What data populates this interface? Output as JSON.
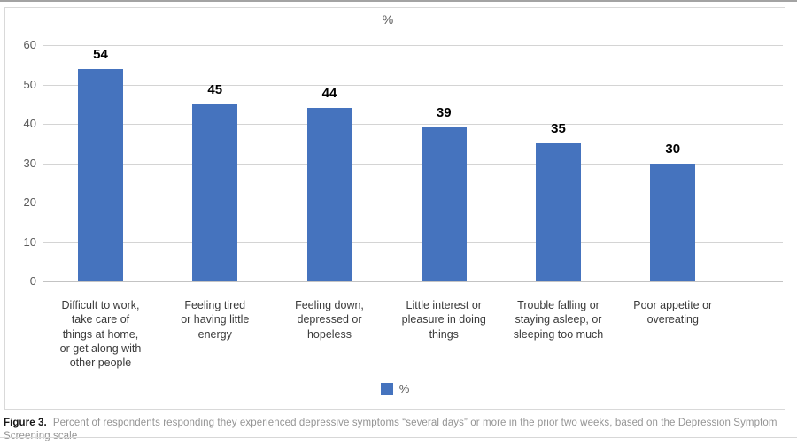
{
  "figure": {
    "caption_prefix": "Figure 3.",
    "caption_text": "Percent of respondents responding they experienced depressive symptoms “several days” or more in the prior two weeks, based on the Depression Symptom Screening scale"
  },
  "chart_data": {
    "type": "bar",
    "title": "%",
    "xlabel": "",
    "ylabel": "",
    "categories": [
      "Difficult to work,\ntake care of\nthings at home,\nor get along with\nother people",
      "Feeling tired\nor having little\nenergy",
      "Feeling down,\ndepressed or\nhopeless",
      "Little interest or\npleasure in doing\nthings",
      "Trouble falling or\nstaying asleep, or\nsleeping too much",
      "Poor appetite or\novereating"
    ],
    "values": [
      54,
      45,
      44,
      39,
      35,
      30
    ],
    "ylim": [
      0,
      60
    ],
    "yticks": [
      0,
      10,
      20,
      30,
      40,
      50,
      60
    ],
    "grid": true,
    "legend": {
      "label": "%",
      "position": "bottom"
    },
    "colors": {
      "bar": "#4573be",
      "gridline": "#d4d4d4",
      "axis_text": "#595959",
      "data_label": "#000000",
      "category_text": "#3a3a3a",
      "chart_border": "#d9d9d9"
    }
  }
}
